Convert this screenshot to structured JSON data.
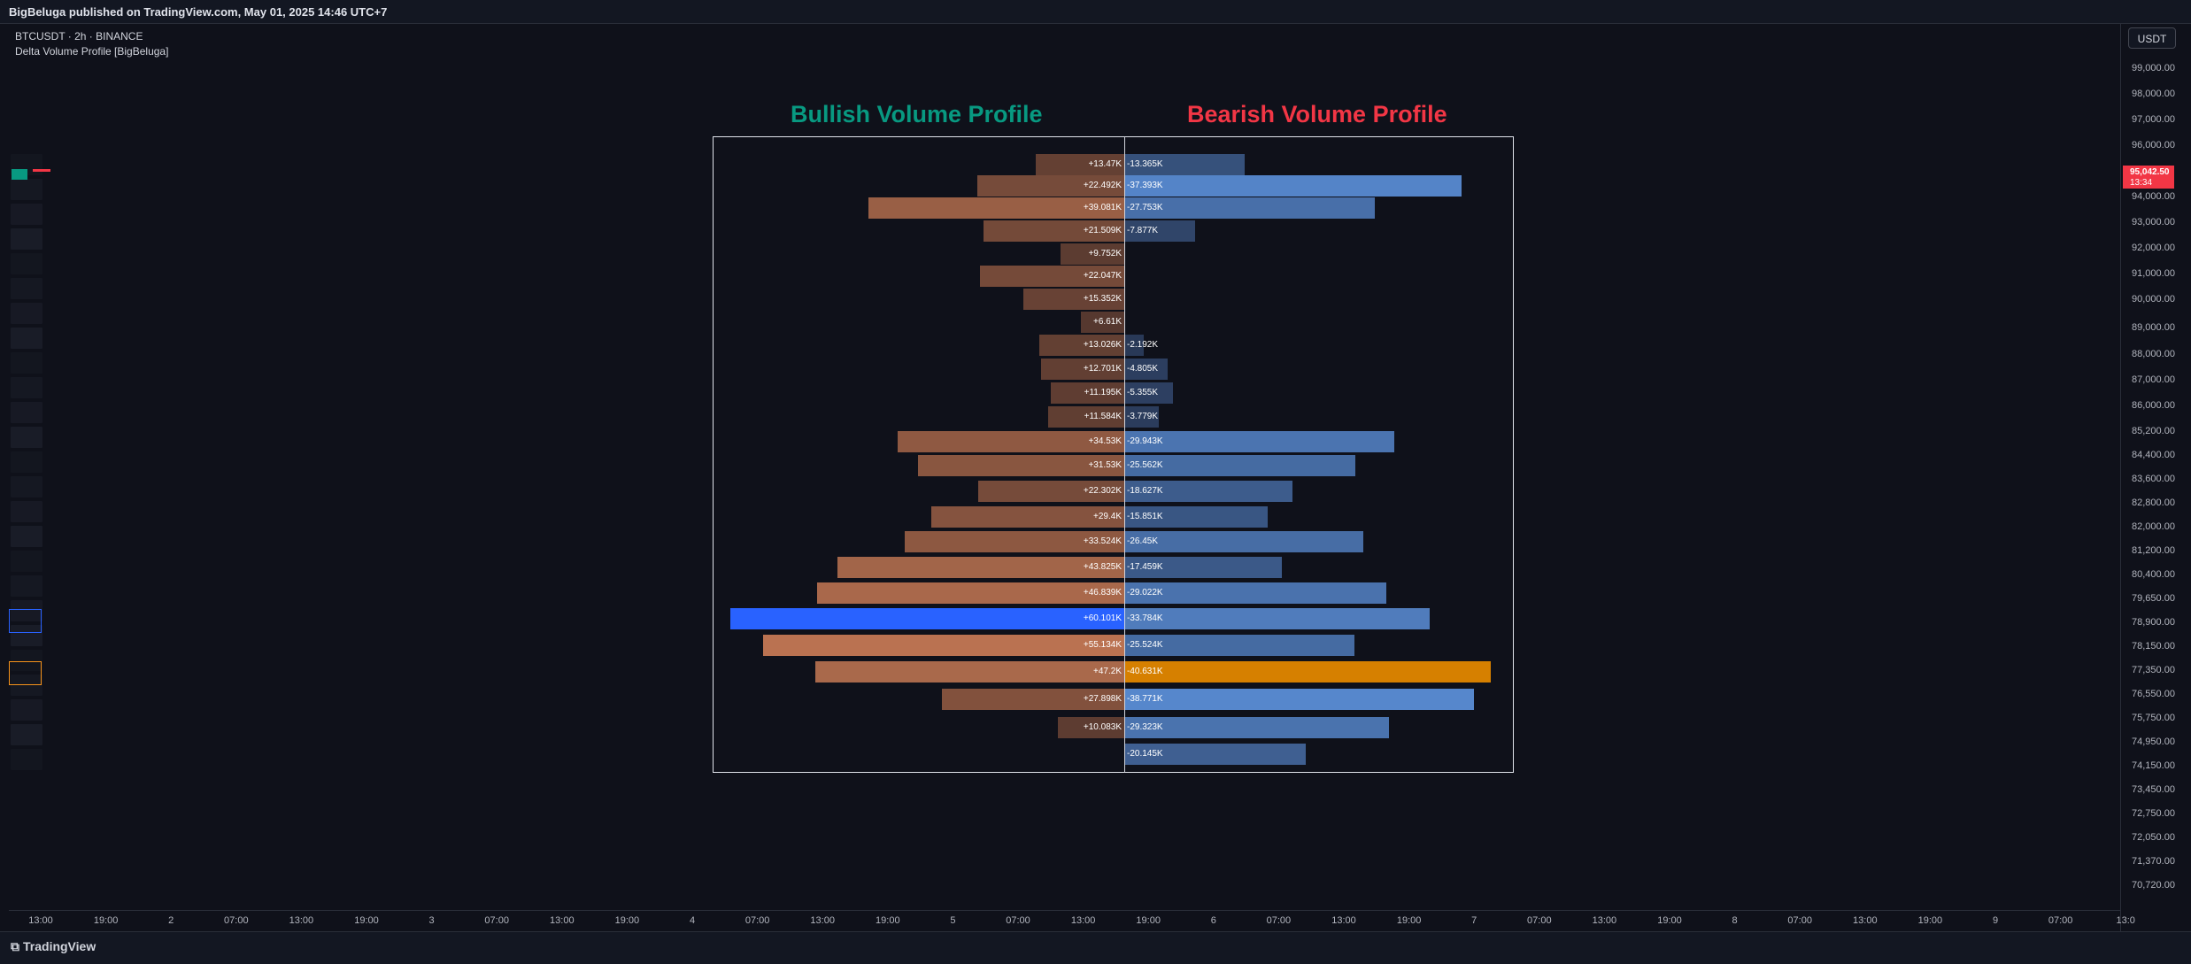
{
  "header": {
    "published": "BigBeluga published on TradingView.com, May 01, 2025 14:46 UTC+7"
  },
  "legend": {
    "symbol": "BTCUSDT · 2h · BINANCE",
    "indicator": "Delta Volume Profile [BigBeluga]"
  },
  "currency": "USDT",
  "current_price": {
    "price": "95,042.50",
    "countdown": "13:34",
    "color": "#f23645"
  },
  "titles": {
    "bullish": "Bullish Volume Profile",
    "bearish": "Bearish Volume Profile"
  },
  "colors": {
    "bull_title": "#089981",
    "bear_title": "#f23645",
    "poc_bull": "#2962ff",
    "poc_bear": "#d68000"
  },
  "price_labels": [
    "99,000.00",
    "98,000.00",
    "97,000.00",
    "96,000.00",
    "94,000.00",
    "93,000.00",
    "92,000.00",
    "91,000.00",
    "90,000.00",
    "89,000.00",
    "88,000.00",
    "87,000.00",
    "86,000.00",
    "85,200.00",
    "84,400.00",
    "83,600.00",
    "82,800.00",
    "82,000.00",
    "81,200.00",
    "80,400.00",
    "79,650.00",
    "78,900.00",
    "78,150.00",
    "77,350.00",
    "76,550.00",
    "75,750.00",
    "74,950.00",
    "74,150.00",
    "73,450.00",
    "72,750.00",
    "72,050.00",
    "71,370.00",
    "70,720.00"
  ],
  "time_labels": [
    "13:00",
    "19:00",
    "2",
    "07:00",
    "13:00",
    "19:00",
    "3",
    "07:00",
    "13:00",
    "19:00",
    "4",
    "07:00",
    "13:00",
    "19:00",
    "5",
    "07:00",
    "13:00",
    "19:00",
    "6",
    "07:00",
    "13:00",
    "19:00",
    "7",
    "07:00",
    "13:00",
    "19:00",
    "8",
    "07:00",
    "13:00",
    "19:00",
    "9",
    "07:00",
    "13:0"
  ],
  "profile_rows": [
    {
      "bull": "+13.47K",
      "bull_v": 13.47,
      "bear": "-13.365K",
      "bear_v": 13.365
    },
    {
      "bull": "+22.492K",
      "bull_v": 22.492,
      "bear": "-37.393K",
      "bear_v": 37.393
    },
    {
      "bull": "+39.081K",
      "bull_v": 39.081,
      "bear": "-27.753K",
      "bear_v": 27.753
    },
    {
      "bull": "+21.509K",
      "bull_v": 21.509,
      "bear": "-7.877K",
      "bear_v": 7.877
    },
    {
      "bull": "+9.752K",
      "bull_v": 9.752,
      "bear": "",
      "bear_v": 0
    },
    {
      "bull": "+22.047K",
      "bull_v": 22.047,
      "bear": "",
      "bear_v": 0
    },
    {
      "bull": "+15.352K",
      "bull_v": 15.352,
      "bear": "",
      "bear_v": 0
    },
    {
      "bull": "+6.61K",
      "bull_v": 6.61,
      "bear": "",
      "bear_v": 0
    },
    {
      "bull": "+13.026K",
      "bull_v": 13.026,
      "bear": "-2.192K",
      "bear_v": 2.192
    },
    {
      "bull": "+12.701K",
      "bull_v": 12.701,
      "bear": "-4.805K",
      "bear_v": 4.805
    },
    {
      "bull": "+11.195K",
      "bull_v": 11.195,
      "bear": "-5.355K",
      "bear_v": 5.355
    },
    {
      "bull": "+11.584K",
      "bull_v": 11.584,
      "bear": "-3.779K",
      "bear_v": 3.779
    },
    {
      "bull": "+34.53K",
      "bull_v": 34.53,
      "bear": "-29.943K",
      "bear_v": 29.943
    },
    {
      "bull": "+31.53K",
      "bull_v": 31.53,
      "bear": "-25.562K",
      "bear_v": 25.562
    },
    {
      "bull": "+22.302K",
      "bull_v": 22.302,
      "bear": "-18.627K",
      "bear_v": 18.627
    },
    {
      "bull": "+29.4K",
      "bull_v": 29.4,
      "bear": "-15.851K",
      "bear_v": 15.851
    },
    {
      "bull": "+33.524K",
      "bull_v": 33.524,
      "bear": "-26.45K",
      "bear_v": 26.45
    },
    {
      "bull": "+43.825K",
      "bull_v": 43.825,
      "bear": "-17.459K",
      "bear_v": 17.459
    },
    {
      "bull": "+46.839K",
      "bull_v": 46.839,
      "bear": "-29.022K",
      "bear_v": 29.022
    },
    {
      "bull": "+60.101K",
      "bull_v": 60.101,
      "bear": "-33.784K",
      "bear_v": 33.784
    },
    {
      "bull": "+55.134K",
      "bull_v": 55.134,
      "bear": "-25.524K",
      "bear_v": 25.524
    },
    {
      "bull": "+47.2K",
      "bull_v": 47.2,
      "bear": "-40.631K",
      "bear_v": 40.631
    },
    {
      "bull": "+27.898K",
      "bull_v": 27.898,
      "bear": "-38.771K",
      "bear_v": 38.771
    },
    {
      "bull": "+10.083K",
      "bull_v": 10.083,
      "bear": "-29.323K",
      "bear_v": 29.323
    },
    {
      "bull": "",
      "bull_v": 0,
      "bear": "-20.145K",
      "bear_v": 20.145
    }
  ],
  "footer": {
    "brand": "TradingView"
  }
}
